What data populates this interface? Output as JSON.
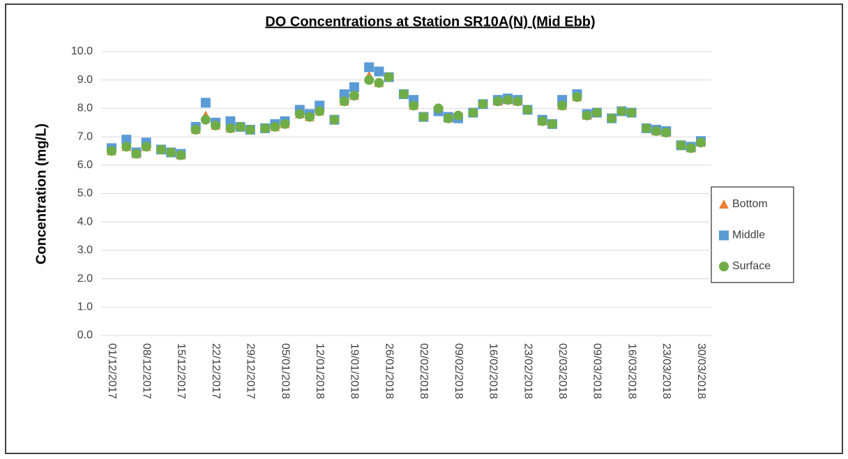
{
  "chart_data": {
    "type": "scatter",
    "title": "DO Concentrations at Station SR10A(N) (Mid Ebb)",
    "y_label": "Concentration (mg/L)",
    "x": [
      "2017-12-01",
      "2017-12-04",
      "2017-12-06",
      "2017-12-08",
      "2017-12-11",
      "2017-12-13",
      "2017-12-15",
      "2017-12-18",
      "2017-12-20",
      "2017-12-22",
      "2017-12-25",
      "2017-12-27",
      "2017-12-29",
      "2018-01-01",
      "2018-01-03",
      "2018-01-05",
      "2018-01-08",
      "2018-01-10",
      "2018-01-12",
      "2018-01-15",
      "2018-01-17",
      "2018-01-19",
      "2018-01-22",
      "2018-01-24",
      "2018-01-26",
      "2018-01-29",
      "2018-01-31",
      "2018-02-02",
      "2018-02-05",
      "2018-02-07",
      "2018-02-09",
      "2018-02-12",
      "2018-02-14",
      "2018-02-17",
      "2018-02-19",
      "2018-02-21",
      "2018-02-23",
      "2018-02-26",
      "2018-02-28",
      "2018-03-02",
      "2018-03-05",
      "2018-03-07",
      "2018-03-09",
      "2018-03-12",
      "2018-03-14",
      "2018-03-16",
      "2018-03-19",
      "2018-03-21",
      "2018-03-23",
      "2018-03-26",
      "2018-03-28",
      "2018-03-30"
    ],
    "series": [
      {
        "name": "Bottom",
        "color": "#ed7d31",
        "marker": "triangle",
        "values": [
          6.5,
          6.65,
          6.4,
          6.65,
          6.55,
          6.45,
          6.35,
          7.25,
          7.75,
          7.4,
          7.3,
          7.35,
          7.25,
          7.3,
          7.35,
          7.45,
          7.8,
          7.7,
          7.9,
          7.6,
          8.25,
          8.45,
          9.15,
          8.9,
          9.1,
          8.5,
          8.1,
          7.7,
          8.0,
          7.65,
          7.75,
          7.85,
          8.15,
          8.25,
          8.3,
          8.25,
          7.95,
          7.55,
          7.45,
          8.1,
          8.4,
          7.75,
          7.85,
          7.65,
          7.9,
          7.85,
          7.3,
          7.2,
          7.15,
          6.7,
          6.6,
          6.8
        ]
      },
      {
        "name": "Middle",
        "color": "#5b9bd5",
        "marker": "square",
        "values": [
          6.6,
          6.9,
          6.45,
          6.8,
          6.55,
          6.45,
          6.4,
          7.35,
          8.2,
          7.5,
          7.55,
          7.35,
          7.25,
          7.3,
          7.45,
          7.55,
          7.95,
          7.8,
          8.1,
          7.6,
          8.5,
          8.75,
          9.45,
          9.3,
          9.1,
          8.5,
          8.3,
          7.7,
          7.9,
          7.7,
          7.65,
          7.85,
          8.15,
          8.3,
          8.35,
          8.3,
          7.95,
          7.6,
          7.45,
          8.3,
          8.5,
          7.8,
          7.85,
          7.65,
          7.9,
          7.85,
          7.3,
          7.25,
          7.2,
          6.7,
          6.65,
          6.85
        ]
      },
      {
        "name": "Surface",
        "color": "#70ad47",
        "marker": "circle",
        "values": [
          6.5,
          6.65,
          6.4,
          6.65,
          6.55,
          6.45,
          6.35,
          7.25,
          7.6,
          7.4,
          7.3,
          7.35,
          7.25,
          7.3,
          7.35,
          7.45,
          7.8,
          7.7,
          7.9,
          7.6,
          8.25,
          8.45,
          9.0,
          8.9,
          9.1,
          8.5,
          8.1,
          7.7,
          8.0,
          7.65,
          7.75,
          7.85,
          8.15,
          8.25,
          8.3,
          8.25,
          7.95,
          7.55,
          7.45,
          8.1,
          8.4,
          7.75,
          7.85,
          7.65,
          7.9,
          7.85,
          7.3,
          7.2,
          7.15,
          6.7,
          6.6,
          6.8
        ]
      }
    ],
    "xlim": [
      "2017-12-01",
      "2018-03-30"
    ],
    "xticks": [
      {
        "value": "2017-12-01",
        "label": "01/12/2017"
      },
      {
        "value": "2017-12-08",
        "label": "08/12/2017"
      },
      {
        "value": "2017-12-15",
        "label": "15/12/2017"
      },
      {
        "value": "2017-12-22",
        "label": "22/12/2017"
      },
      {
        "value": "2017-12-29",
        "label": "29/12/2017"
      },
      {
        "value": "2018-01-05",
        "label": "05/01/2018"
      },
      {
        "value": "2018-01-12",
        "label": "12/01/2018"
      },
      {
        "value": "2018-01-19",
        "label": "19/01/2018"
      },
      {
        "value": "2018-01-26",
        "label": "26/01/2018"
      },
      {
        "value": "2018-02-02",
        "label": "02/02/2018"
      },
      {
        "value": "2018-02-09",
        "label": "09/02/2018"
      },
      {
        "value": "2018-02-16",
        "label": "16/02/2018"
      },
      {
        "value": "2018-02-23",
        "label": "23/02/2018"
      },
      {
        "value": "2018-03-02",
        "label": "02/03/2018"
      },
      {
        "value": "2018-03-09",
        "label": "09/03/2018"
      },
      {
        "value": "2018-03-16",
        "label": "16/03/2018"
      },
      {
        "value": "2018-03-23",
        "label": "23/03/2018"
      },
      {
        "value": "2018-03-30",
        "label": "30/03/2018"
      }
    ],
    "ylim": [
      0,
      10
    ],
    "yticks": [
      {
        "value": 0,
        "label": "0.0"
      },
      {
        "value": 1,
        "label": "1.0"
      },
      {
        "value": 2,
        "label": "2.0"
      },
      {
        "value": 3,
        "label": "3.0"
      },
      {
        "value": 4,
        "label": "4.0"
      },
      {
        "value": 5,
        "label": "5.0"
      },
      {
        "value": 6,
        "label": "6.0"
      },
      {
        "value": 7,
        "label": "7.0"
      },
      {
        "value": 8,
        "label": "8.0"
      },
      {
        "value": 9,
        "label": "9.0"
      },
      {
        "value": 10,
        "label": "10.0"
      }
    ],
    "grid": true,
    "legend": "right"
  }
}
